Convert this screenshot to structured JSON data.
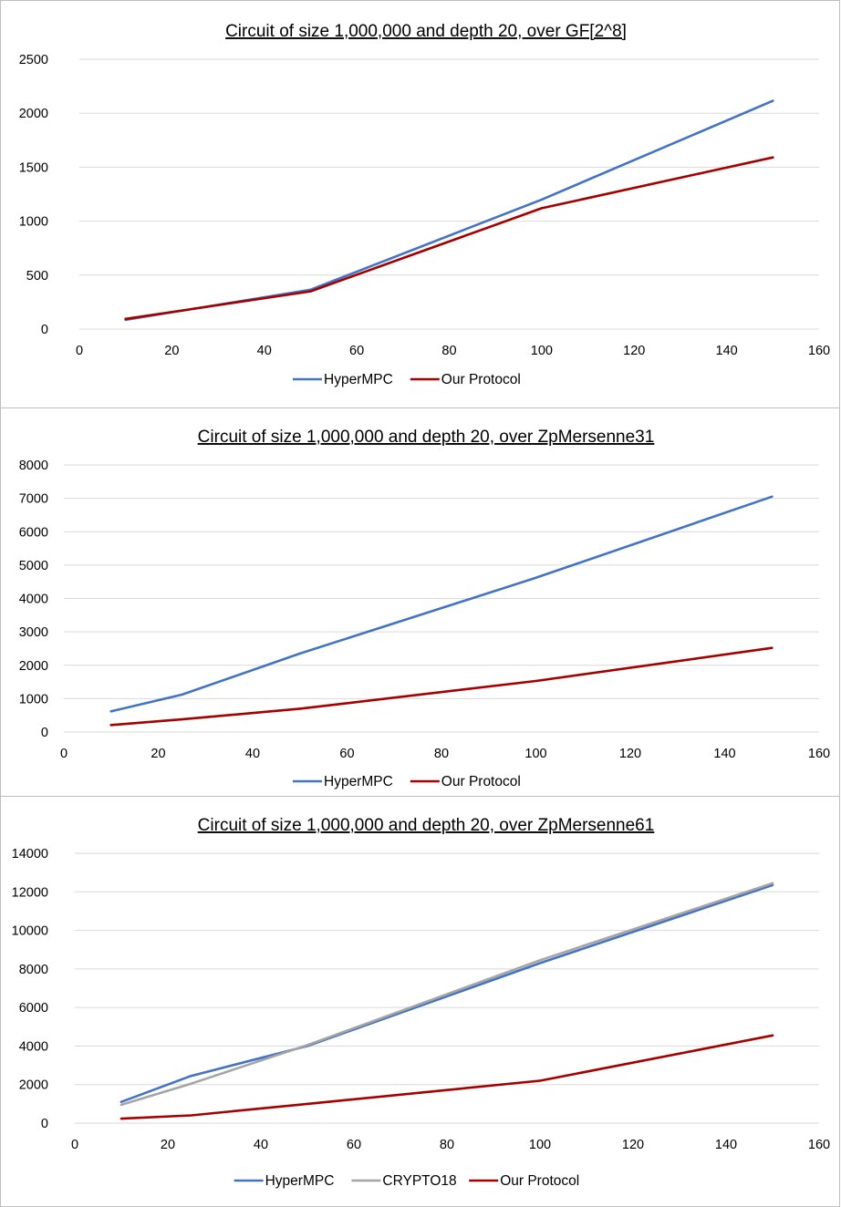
{
  "chart_data": [
    {
      "type": "line",
      "title": "Circuit of size 1,000,000 and depth 20, over GF[2^8]",
      "xlabel": "",
      "ylabel": "",
      "xlim": [
        0,
        160
      ],
      "ylim": [
        0,
        2500
      ],
      "x_ticks": [
        0,
        20,
        40,
        60,
        80,
        100,
        120,
        140,
        160
      ],
      "y_ticks": [
        0,
        500,
        1000,
        1500,
        2000,
        2500
      ],
      "grid": true,
      "legend_position": "bottom",
      "x": [
        10,
        25,
        50,
        100,
        150
      ],
      "series": [
        {
          "name": "HyperMPC",
          "color": "#4472c4",
          "values": [
            85,
            190,
            365,
            1200,
            2115
          ]
        },
        {
          "name": "Our Protocol",
          "color": "#a50000",
          "values": [
            95,
            190,
            350,
            1120,
            1590
          ]
        }
      ]
    },
    {
      "type": "line",
      "title": "Circuit of size 1,000,000 and depth 20, over ZpMersenne31",
      "xlabel": "",
      "ylabel": "",
      "xlim": [
        0,
        160
      ],
      "ylim": [
        0,
        8000
      ],
      "x_ticks": [
        0,
        20,
        40,
        60,
        80,
        100,
        120,
        140,
        160
      ],
      "y_ticks": [
        0,
        1000,
        2000,
        3000,
        4000,
        5000,
        6000,
        7000,
        8000
      ],
      "grid": true,
      "legend_position": "bottom",
      "x": [
        10,
        25,
        50,
        100,
        150
      ],
      "series": [
        {
          "name": "HyperMPC",
          "color": "#4472c4",
          "values": [
            620,
            1120,
            2350,
            4620,
            7050
          ]
        },
        {
          "name": "Our Protocol",
          "color": "#a50000",
          "values": [
            210,
            380,
            700,
            1530,
            2520
          ]
        }
      ]
    },
    {
      "type": "line",
      "title": "Circuit of size 1,000,000 and depth 20, over ZpMersenne61",
      "xlabel": "",
      "ylabel": "",
      "xlim": [
        0,
        160
      ],
      "ylim": [
        0,
        14000
      ],
      "x_ticks": [
        0,
        20,
        40,
        60,
        80,
        100,
        120,
        140,
        160
      ],
      "y_ticks": [
        0,
        2000,
        4000,
        6000,
        8000,
        10000,
        12000,
        14000
      ],
      "grid": true,
      "legend_position": "bottom",
      "x": [
        10,
        25,
        50,
        100,
        150
      ],
      "series": [
        {
          "name": "HyperMPC",
          "color": "#4472c4",
          "values": [
            1100,
            2450,
            4000,
            8300,
            12350
          ]
        },
        {
          "name": "CRYPTO18",
          "color": "#a5a5a5",
          "values": [
            950,
            2050,
            4050,
            8450,
            12450
          ]
        },
        {
          "name": "Our Protocol",
          "color": "#a50000",
          "values": [
            230,
            400,
            1000,
            2200,
            4550
          ]
        }
      ]
    }
  ]
}
